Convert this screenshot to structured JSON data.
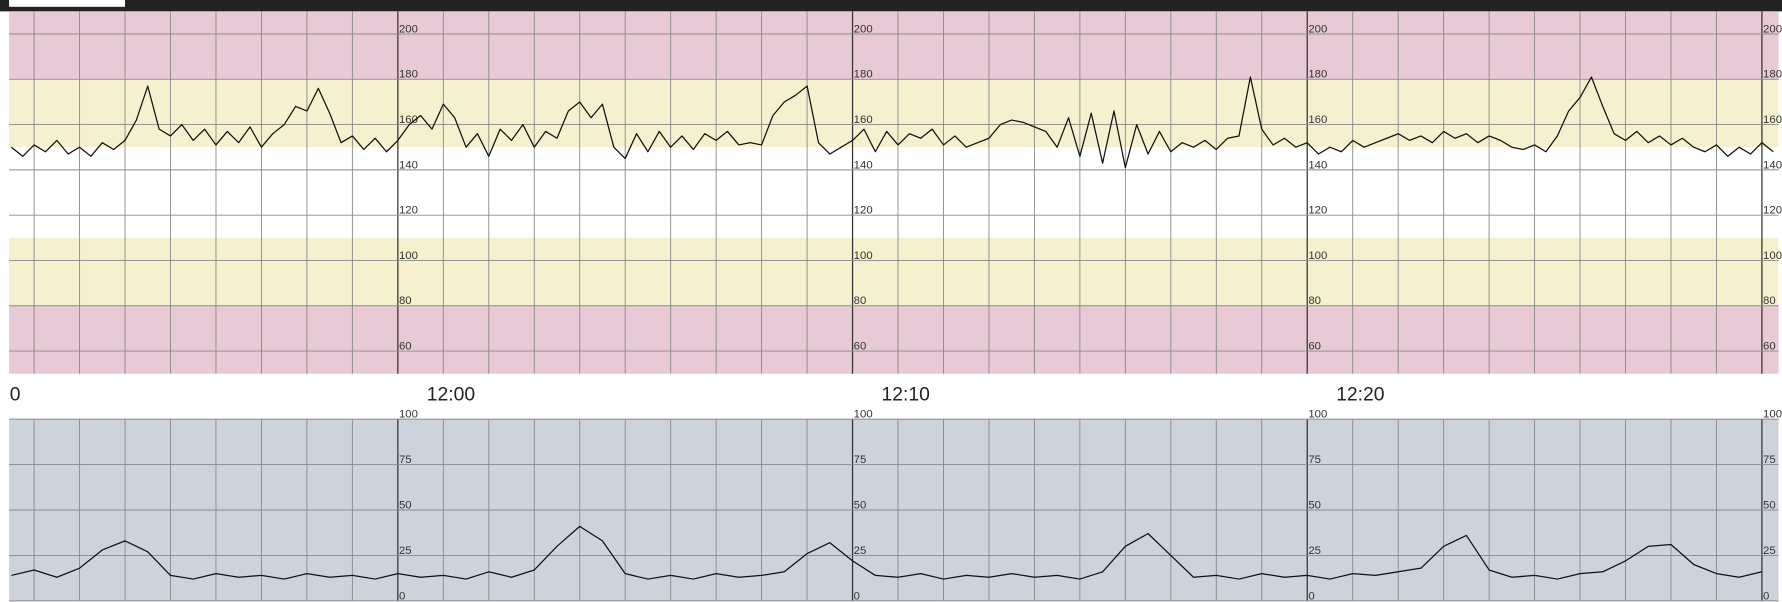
{
  "chart_data": [
    {
      "type": "line",
      "color": "#111111",
      "xlim": [
        "11:51:27",
        "12:30:22"
      ],
      "xticks": [
        {
          "value": "11:50:00",
          "label": "0"
        },
        {
          "value": "12:00:00",
          "label": "12:00"
        },
        {
          "value": "12:10:00",
          "label": "12:10"
        },
        {
          "value": "12:20:00",
          "label": "12:20"
        }
      ],
      "ylim": [
        50,
        210
      ],
      "yticks": [
        60,
        80,
        100,
        120,
        140,
        160,
        180,
        200
      ],
      "grid": true,
      "bands": [
        {
          "from": 180,
          "to": 210,
          "color": "#e8c9d6"
        },
        {
          "from": 150,
          "to": 180,
          "color": "#f5f0cd"
        },
        {
          "from": 110,
          "to": 150,
          "color": "#ffffff"
        },
        {
          "from": 80,
          "to": 110,
          "color": "#f5f0cd"
        },
        {
          "from": 50,
          "to": 80,
          "color": "#e8c9d6"
        }
      ],
      "x": [
        "11:51:30",
        "11:51:45",
        "11:52:00",
        "11:52:15",
        "11:52:30",
        "11:52:45",
        "11:53:00",
        "11:53:15",
        "11:53:30",
        "11:53:45",
        "11:54:00",
        "11:54:15",
        "11:54:30",
        "11:54:45",
        "11:55:00",
        "11:55:15",
        "11:55:30",
        "11:55:45",
        "11:56:00",
        "11:56:15",
        "11:56:30",
        "11:56:45",
        "11:57:00",
        "11:57:15",
        "11:57:30",
        "11:57:45",
        "11:58:00",
        "11:58:15",
        "11:58:30",
        "11:58:45",
        "11:59:00",
        "11:59:15",
        "11:59:30",
        "11:59:45",
        "12:00:00",
        "12:00:15",
        "12:00:30",
        "12:00:45",
        "12:01:00",
        "12:01:15",
        "12:01:30",
        "12:01:45",
        "12:02:00",
        "12:02:15",
        "12:02:30",
        "12:02:45",
        "12:03:00",
        "12:03:15",
        "12:03:30",
        "12:03:45",
        "12:04:00",
        "12:04:15",
        "12:04:30",
        "12:04:45",
        "12:05:00",
        "12:05:15",
        "12:05:30",
        "12:05:45",
        "12:06:00",
        "12:06:15",
        "12:06:30",
        "12:06:45",
        "12:07:00",
        "12:07:15",
        "12:07:30",
        "12:07:45",
        "12:08:00",
        "12:08:15",
        "12:08:30",
        "12:08:45",
        "12:09:00",
        "12:09:15",
        "12:09:30",
        "12:09:45",
        "12:10:00",
        "12:10:15",
        "12:10:30",
        "12:10:45",
        "12:11:00",
        "12:11:15",
        "12:11:30",
        "12:11:45",
        "12:12:00",
        "12:12:15",
        "12:12:30",
        "12:12:45",
        "12:13:00",
        "12:13:15",
        "12:13:30",
        "12:13:45",
        "12:14:00",
        "12:14:15",
        "12:14:30",
        "12:14:45",
        "12:15:00",
        "12:15:15",
        "12:15:30",
        "12:15:45",
        "12:16:00",
        "12:16:15",
        "12:16:30",
        "12:16:45",
        "12:17:00",
        "12:17:15",
        "12:17:30",
        "12:17:45",
        "12:18:00",
        "12:18:15",
        "12:18:30",
        "12:18:45",
        "12:19:00",
        "12:19:15",
        "12:19:30",
        "12:19:45",
        "12:20:00",
        "12:20:15",
        "12:20:30",
        "12:20:45",
        "12:21:00",
        "12:21:15",
        "12:21:30",
        "12:21:45",
        "12:22:00",
        "12:22:15",
        "12:22:30",
        "12:22:45",
        "12:23:00",
        "12:23:15",
        "12:23:30",
        "12:23:45",
        "12:24:00",
        "12:24:15",
        "12:24:30",
        "12:24:45",
        "12:25:00",
        "12:25:15",
        "12:25:30",
        "12:25:45",
        "12:26:00",
        "12:26:15",
        "12:26:30",
        "12:26:45",
        "12:27:00",
        "12:27:15",
        "12:27:30",
        "12:27:45",
        "12:28:00",
        "12:28:15",
        "12:28:30",
        "12:28:45",
        "12:29:00",
        "12:29:15",
        "12:29:30",
        "12:29:45",
        "12:30:00",
        "12:30:15"
      ],
      "values": [
        150,
        146,
        151,
        148,
        153,
        147,
        150,
        146,
        152,
        149,
        153,
        162,
        177,
        158,
        155,
        160,
        153,
        158,
        151,
        157,
        152,
        159,
        150,
        156,
        160,
        168,
        166,
        176,
        165,
        152,
        155,
        149,
        154,
        148,
        153,
        160,
        164,
        158,
        169,
        163,
        150,
        156,
        146,
        158,
        153,
        160,
        150,
        157,
        154,
        166,
        170,
        163,
        169,
        150,
        145,
        156,
        148,
        157,
        150,
        155,
        149,
        156,
        153,
        157,
        151,
        152,
        151,
        164,
        170,
        173,
        177,
        152,
        147,
        150,
        153,
        158,
        148,
        157,
        151,
        156,
        154,
        158,
        151,
        155,
        150,
        152,
        154,
        160,
        162,
        161,
        159,
        157,
        150,
        163,
        146,
        165,
        143,
        166,
        141,
        160,
        147,
        157,
        148,
        152,
        150,
        153,
        149,
        154,
        155,
        181,
        158,
        151,
        154,
        150,
        152,
        147,
        150,
        148,
        153,
        150,
        152,
        154,
        156,
        153,
        155,
        152,
        157,
        154,
        156,
        152,
        155,
        153,
        150,
        149,
        151,
        148,
        155,
        166,
        172,
        181,
        168,
        156,
        153,
        157,
        152,
        155,
        151,
        154,
        150,
        148,
        151,
        146,
        150,
        147,
        152,
        148
      ]
    },
    {
      "type": "line",
      "color": "#111111",
      "xlim": [
        "11:51:27",
        "12:30:22"
      ],
      "ylim": [
        0,
        100
      ],
      "yticks": [
        0,
        25,
        50,
        75,
        100
      ],
      "grid": true,
      "background": "#cdd3dd",
      "x": [
        "11:51:30",
        "11:52:00",
        "11:52:30",
        "11:53:00",
        "11:53:30",
        "11:54:00",
        "11:54:30",
        "11:55:00",
        "11:55:30",
        "11:56:00",
        "11:56:30",
        "11:57:00",
        "11:57:30",
        "11:58:00",
        "11:58:30",
        "11:59:00",
        "11:59:30",
        "12:00:00",
        "12:00:30",
        "12:01:00",
        "12:01:30",
        "12:02:00",
        "12:02:30",
        "12:03:00",
        "12:03:30",
        "12:04:00",
        "12:04:30",
        "12:05:00",
        "12:05:30",
        "12:06:00",
        "12:06:30",
        "12:07:00",
        "12:07:30",
        "12:08:00",
        "12:08:30",
        "12:09:00",
        "12:09:30",
        "12:10:00",
        "12:10:30",
        "12:11:00",
        "12:11:30",
        "12:12:00",
        "12:12:30",
        "12:13:00",
        "12:13:30",
        "12:14:00",
        "12:14:30",
        "12:15:00",
        "12:15:30",
        "12:16:00",
        "12:16:30",
        "12:17:00",
        "12:17:30",
        "12:18:00",
        "12:18:30",
        "12:19:00",
        "12:19:30",
        "12:20:00",
        "12:20:30",
        "12:21:00",
        "12:21:30",
        "12:22:00",
        "12:22:30",
        "12:23:00",
        "12:23:30",
        "12:24:00",
        "12:24:30",
        "12:25:00",
        "12:25:30",
        "12:26:00",
        "12:26:30",
        "12:27:00",
        "12:27:30",
        "12:28:00",
        "12:28:30",
        "12:29:00",
        "12:29:30",
        "12:30:00"
      ],
      "values": [
        14,
        17,
        13,
        18,
        28,
        33,
        27,
        14,
        12,
        15,
        13,
        14,
        12,
        15,
        13,
        14,
        12,
        15,
        13,
        14,
        12,
        16,
        13,
        17,
        30,
        41,
        33,
        15,
        12,
        14,
        12,
        15,
        13,
        14,
        16,
        26,
        32,
        22,
        14,
        13,
        15,
        12,
        14,
        13,
        15,
        13,
        14,
        12,
        16,
        30,
        37,
        25,
        13,
        14,
        12,
        15,
        13,
        14,
        12,
        15,
        14,
        16,
        18,
        30,
        36,
        17,
        13,
        14,
        12,
        15,
        16,
        22,
        30,
        31,
        20,
        15,
        13,
        16
      ]
    }
  ]
}
